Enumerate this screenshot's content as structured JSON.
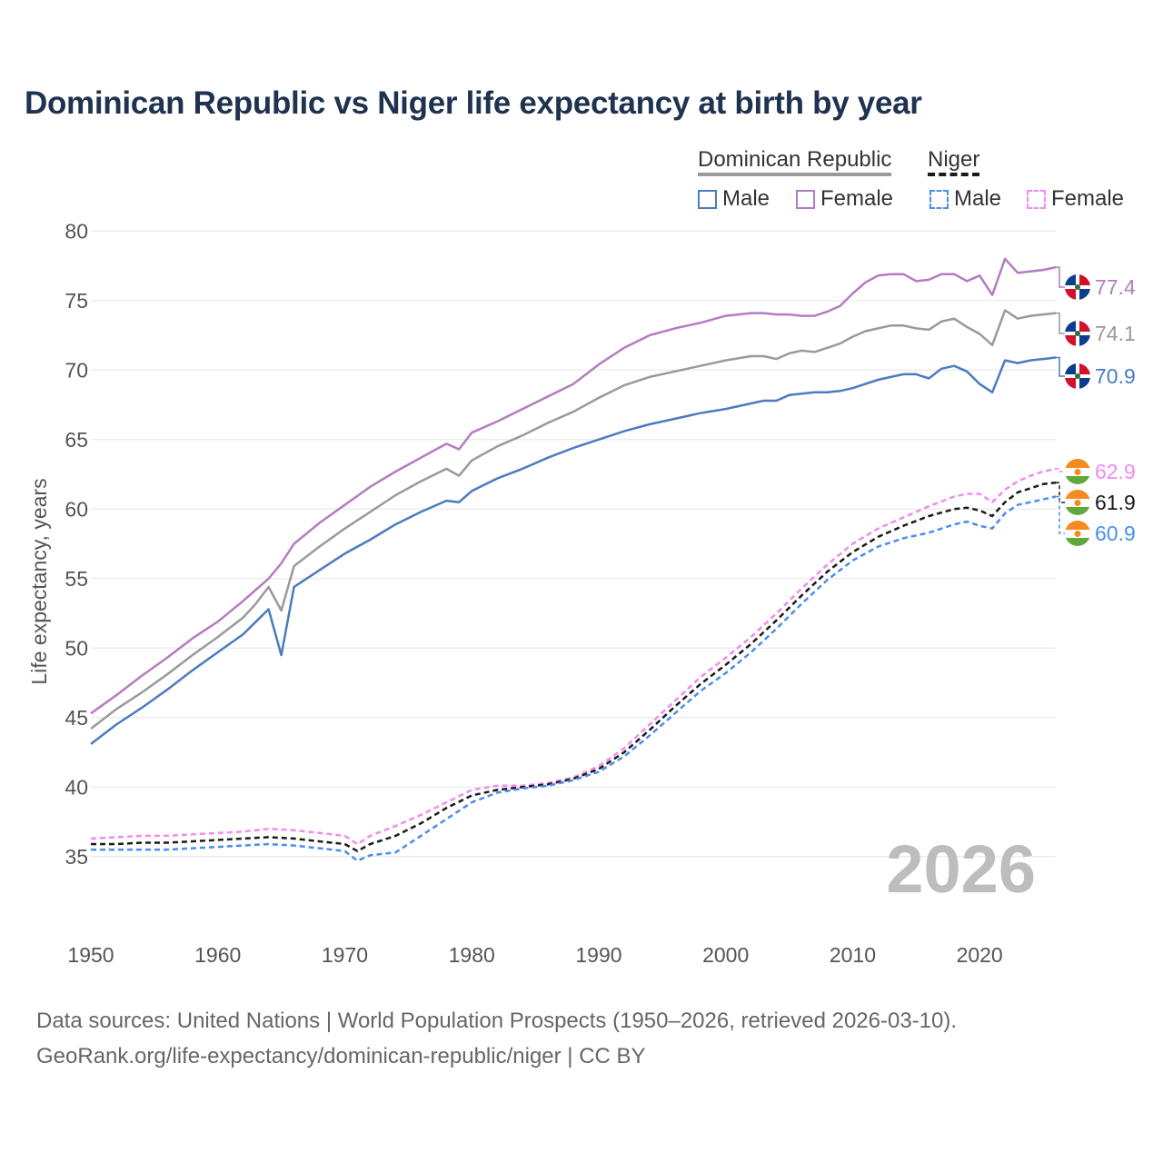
{
  "chart_data": {
    "type": "line",
    "title": "Dominican Republic vs Niger life expectancy at birth by year",
    "ylabel": "Life expectancy, years",
    "xlabel": "",
    "xlim": [
      1950,
      2026
    ],
    "ylim": [
      31,
      81
    ],
    "y_ticks": [
      "35",
      "40",
      "45",
      "50",
      "55",
      "60",
      "65",
      "70",
      "75",
      "80"
    ],
    "x_ticks": [
      "1950",
      "1960",
      "1970",
      "1980",
      "1990",
      "2000",
      "2010",
      "2020"
    ],
    "year_watermark": "2026",
    "legend": {
      "groups": [
        {
          "country": "Dominican Republic",
          "items": [
            "Male",
            "Female"
          ]
        },
        {
          "country": "Niger",
          "items": [
            "Male",
            "Female"
          ]
        }
      ]
    },
    "series": [
      {
        "name": "Dominican Republic Female",
        "color": "#b47cc0",
        "dashed": false,
        "end_label": "77.4",
        "x": [
          1950,
          1952,
          1954,
          1956,
          1958,
          1960,
          1962,
          1963,
          1964,
          1965,
          1966,
          1968,
          1970,
          1972,
          1974,
          1976,
          1978,
          1979,
          1980,
          1982,
          1984,
          1986,
          1988,
          1990,
          1992,
          1994,
          1996,
          1998,
          2000,
          2002,
          2003,
          2004,
          2005,
          2006,
          2007,
          2008,
          2009,
          2010,
          2011,
          2012,
          2013,
          2014,
          2015,
          2016,
          2017,
          2018,
          2019,
          2020,
          2021,
          2022,
          2023,
          2024,
          2025,
          2026
        ],
        "values": [
          45.3,
          46.6,
          48.0,
          49.3,
          50.7,
          51.9,
          53.4,
          54.2,
          55.0,
          56.1,
          57.5,
          59.0,
          60.3,
          61.6,
          62.7,
          63.7,
          64.7,
          64.3,
          65.5,
          66.3,
          67.2,
          68.1,
          69.0,
          70.4,
          71.6,
          72.5,
          73.0,
          73.4,
          73.9,
          74.1,
          74.1,
          74.0,
          74.0,
          73.9,
          73.9,
          74.2,
          74.6,
          75.5,
          76.3,
          76.8,
          76.9,
          76.9,
          76.4,
          76.5,
          76.9,
          76.9,
          76.4,
          76.8,
          75.4,
          78.0,
          77.0,
          77.1,
          77.2,
          77.4
        ]
      },
      {
        "name": "Dominican Republic Total",
        "color": "#9a9a9a",
        "dashed": false,
        "end_label": "74.1",
        "x": [
          1950,
          1952,
          1954,
          1956,
          1958,
          1960,
          1962,
          1963,
          1964,
          1965,
          1966,
          1968,
          1970,
          1972,
          1974,
          1976,
          1978,
          1979,
          1980,
          1982,
          1984,
          1986,
          1988,
          1990,
          1992,
          1994,
          1996,
          1998,
          2000,
          2002,
          2003,
          2004,
          2005,
          2006,
          2007,
          2008,
          2009,
          2010,
          2011,
          2012,
          2013,
          2014,
          2015,
          2016,
          2017,
          2018,
          2019,
          2020,
          2021,
          2022,
          2023,
          2024,
          2025,
          2026
        ],
        "values": [
          44.2,
          45.6,
          46.8,
          48.1,
          49.5,
          50.8,
          52.2,
          53.2,
          54.4,
          52.7,
          55.9,
          57.3,
          58.6,
          59.8,
          61.0,
          62.0,
          62.9,
          62.4,
          63.5,
          64.5,
          65.3,
          66.2,
          67.0,
          68.0,
          68.9,
          69.5,
          69.9,
          70.3,
          70.7,
          71.0,
          71.0,
          70.8,
          71.2,
          71.4,
          71.3,
          71.6,
          71.9,
          72.4,
          72.8,
          73.0,
          73.2,
          73.2,
          73.0,
          72.9,
          73.5,
          73.7,
          73.1,
          72.6,
          71.8,
          74.3,
          73.7,
          73.9,
          74.0,
          74.1
        ]
      },
      {
        "name": "Dominican Republic Male",
        "color": "#4b7bc1",
        "dashed": false,
        "end_label": "70.9",
        "x": [
          1950,
          1952,
          1954,
          1956,
          1958,
          1960,
          1962,
          1963,
          1964,
          1965,
          1966,
          1968,
          1970,
          1972,
          1974,
          1976,
          1978,
          1979,
          1980,
          1982,
          1984,
          1986,
          1988,
          1990,
          1992,
          1994,
          1996,
          1998,
          2000,
          2002,
          2003,
          2004,
          2005,
          2006,
          2007,
          2008,
          2009,
          2010,
          2011,
          2012,
          2013,
          2014,
          2015,
          2016,
          2017,
          2018,
          2019,
          2020,
          2021,
          2022,
          2023,
          2024,
          2025,
          2026
        ],
        "values": [
          43.1,
          44.5,
          45.7,
          47.0,
          48.4,
          49.7,
          51.0,
          51.9,
          52.8,
          49.5,
          54.4,
          55.6,
          56.8,
          57.8,
          58.9,
          59.8,
          60.6,
          60.5,
          61.3,
          62.2,
          62.9,
          63.7,
          64.4,
          65.0,
          65.6,
          66.1,
          66.5,
          66.9,
          67.2,
          67.6,
          67.8,
          67.8,
          68.2,
          68.3,
          68.4,
          68.4,
          68.5,
          68.7,
          69.0,
          69.3,
          69.5,
          69.7,
          69.7,
          69.4,
          70.1,
          70.3,
          69.9,
          69.0,
          68.4,
          70.7,
          70.5,
          70.7,
          70.8,
          70.9
        ]
      },
      {
        "name": "Niger Female",
        "color": "#f08bf0",
        "dashed": true,
        "end_label": "62.9",
        "x": [
          1950,
          1952,
          1954,
          1956,
          1958,
          1960,
          1962,
          1964,
          1966,
          1968,
          1970,
          1971,
          1972,
          1974,
          1976,
          1978,
          1980,
          1982,
          1984,
          1986,
          1988,
          1990,
          1992,
          1994,
          1996,
          1998,
          2000,
          2002,
          2004,
          2006,
          2008,
          2010,
          2012,
          2014,
          2016,
          2018,
          2019,
          2020,
          2021,
          2022,
          2023,
          2024,
          2025,
          2026
        ],
        "values": [
          36.3,
          36.4,
          36.5,
          36.5,
          36.6,
          36.7,
          36.8,
          37.0,
          36.9,
          36.7,
          36.5,
          35.9,
          36.5,
          37.2,
          38.0,
          38.9,
          39.8,
          40.1,
          40.1,
          40.3,
          40.7,
          41.5,
          42.8,
          44.5,
          46.2,
          47.9,
          49.3,
          50.8,
          52.5,
          54.3,
          56.0,
          57.5,
          58.6,
          59.4,
          60.2,
          60.9,
          61.1,
          61.1,
          60.5,
          61.4,
          62.0,
          62.4,
          62.7,
          62.9
        ]
      },
      {
        "name": "Niger Total",
        "color": "#1a1a1a",
        "dashed": true,
        "end_label": "61.9",
        "x": [
          1950,
          1952,
          1954,
          1956,
          1958,
          1960,
          1962,
          1964,
          1966,
          1968,
          1970,
          1971,
          1972,
          1974,
          1976,
          1978,
          1980,
          1982,
          1984,
          1986,
          1988,
          1990,
          1992,
          1994,
          1996,
          1998,
          2000,
          2002,
          2004,
          2006,
          2008,
          2010,
          2012,
          2014,
          2016,
          2018,
          2019,
          2020,
          2021,
          2022,
          2023,
          2024,
          2025,
          2026
        ],
        "values": [
          35.9,
          35.9,
          36.0,
          36.0,
          36.1,
          36.2,
          36.3,
          36.4,
          36.3,
          36.1,
          35.9,
          35.4,
          35.9,
          36.5,
          37.4,
          38.5,
          39.4,
          39.8,
          40.0,
          40.2,
          40.6,
          41.3,
          42.5,
          44.1,
          45.8,
          47.4,
          48.8,
          50.3,
          52.0,
          53.8,
          55.5,
          56.9,
          58.0,
          58.8,
          59.5,
          60.0,
          60.1,
          59.9,
          59.5,
          60.5,
          61.2,
          61.5,
          61.8,
          61.9
        ]
      },
      {
        "name": "Niger Male",
        "color": "#4a8ef0",
        "dashed": true,
        "end_label": "60.9",
        "x": [
          1950,
          1952,
          1954,
          1956,
          1958,
          1960,
          1962,
          1964,
          1966,
          1968,
          1970,
          1971,
          1972,
          1974,
          1976,
          1978,
          1980,
          1982,
          1984,
          1986,
          1988,
          1990,
          1992,
          1994,
          1996,
          1998,
          2000,
          2002,
          2004,
          2006,
          2008,
          2010,
          2012,
          2014,
          2016,
          2018,
          2019,
          2020,
          2021,
          2022,
          2023,
          2024,
          2025,
          2026
        ],
        "values": [
          35.5,
          35.5,
          35.5,
          35.5,
          35.6,
          35.7,
          35.8,
          35.9,
          35.8,
          35.6,
          35.4,
          34.7,
          35.1,
          35.3,
          36.5,
          37.7,
          38.9,
          39.6,
          39.9,
          40.1,
          40.5,
          41.1,
          42.2,
          43.7,
          45.3,
          46.9,
          48.2,
          49.7,
          51.4,
          53.2,
          54.9,
          56.3,
          57.3,
          57.9,
          58.3,
          58.9,
          59.1,
          58.8,
          58.6,
          59.7,
          60.3,
          60.5,
          60.7,
          60.9
        ]
      }
    ]
  },
  "footer": {
    "line1": "Data sources: United Nations | World Population Prospects (1950–2026, retrieved 2026-03-10).",
    "line2": "GeoRank.org/life-expectancy/dominican-republic/niger | CC BY"
  }
}
